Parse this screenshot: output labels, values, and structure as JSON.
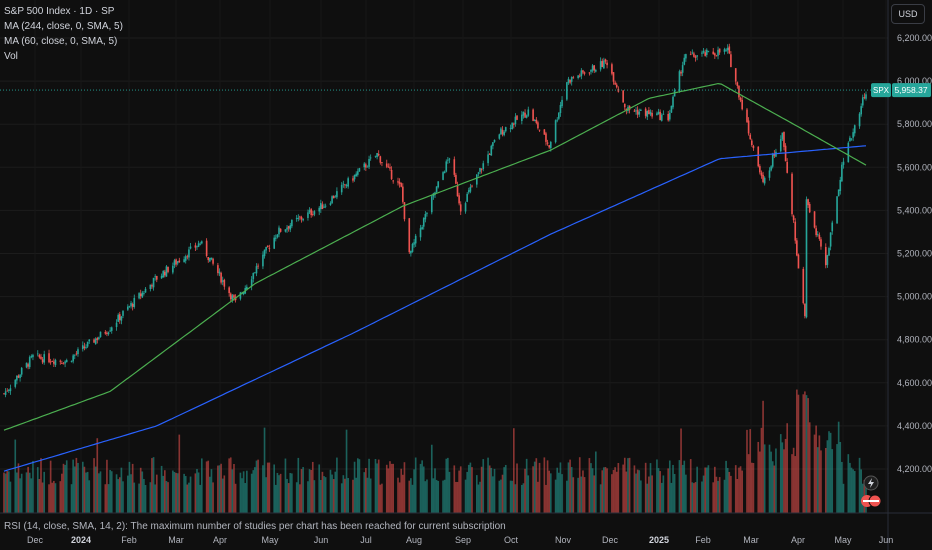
{
  "legend": {
    "title": "S&P 500 Index · 1D · SP",
    "ma_long": "MA (244, close, 0, SMA, 5)",
    "ma_short": "MA (60, close, 0, SMA, 5)",
    "volume": "Vol"
  },
  "currency": "USD",
  "rsi_note": "RSI (14, close, SMA, 14, 2): The maximum number of studies per chart has been reached for current subscription",
  "price_tag": {
    "symbol": "SPX",
    "value": "5,958.37",
    "price": 5958.37
  },
  "colors": {
    "up": "#26a69a",
    "down": "#ef5350",
    "ma_long": "#2962ff",
    "ma_short": "#4caf50",
    "tag": "#26a69a"
  },
  "icons": [
    "lightning-icon",
    "avatar-badge-icon"
  ],
  "chart_data": {
    "type": "candlestick",
    "symbol": "SPX",
    "ylim": [
      4100,
      6300
    ],
    "y_ticks": [
      "6,200.00",
      "6,000.00",
      "5,800.00",
      "5,600.00",
      "5,400.00",
      "5,200.00",
      "5,000.00",
      "4,800.00",
      "4,600.00",
      "4,400.00",
      "4,200.00"
    ],
    "y_tick_values": [
      6200,
      6000,
      5800,
      5600,
      5400,
      5200,
      5000,
      4800,
      4600,
      4400,
      4200
    ],
    "x_ticks": [
      "Dec",
      "2024",
      "Feb",
      "Mar",
      "Apr",
      "May",
      "Jun",
      "Jul",
      "Aug",
      "Sep",
      "Oct",
      "Nov",
      "Dec",
      "2025",
      "Feb",
      "Mar",
      "Apr",
      "May",
      "Jun"
    ],
    "x_tick_bold": [
      "2024",
      "2025"
    ],
    "price_path": [
      {
        "date": "2023-11-27",
        "close": 4550
      },
      {
        "date": "2023-12-15",
        "close": 4720
      },
      {
        "date": "2024-01-05",
        "close": 4700
      },
      {
        "date": "2024-01-31",
        "close": 4850
      },
      {
        "date": "2024-02-29",
        "close": 5080
      },
      {
        "date": "2024-03-28",
        "close": 5250
      },
      {
        "date": "2024-04-19",
        "close": 4970
      },
      {
        "date": "2024-05-15",
        "close": 5300
      },
      {
        "date": "2024-06-14",
        "close": 5430
      },
      {
        "date": "2024-07-16",
        "close": 5660
      },
      {
        "date": "2024-07-31",
        "close": 5500
      },
      {
        "date": "2024-08-05",
        "close": 5190
      },
      {
        "date": "2024-08-30",
        "close": 5650
      },
      {
        "date": "2024-09-06",
        "close": 5410
      },
      {
        "date": "2024-09-30",
        "close": 5760
      },
      {
        "date": "2024-10-18",
        "close": 5860
      },
      {
        "date": "2024-10-31",
        "close": 5700
      },
      {
        "date": "2024-11-11",
        "close": 6000
      },
      {
        "date": "2024-12-06",
        "close": 6090
      },
      {
        "date": "2024-12-18",
        "close": 5870
      },
      {
        "date": "2025-01-13",
        "close": 5830
      },
      {
        "date": "2025-01-23",
        "close": 6110
      },
      {
        "date": "2025-02-19",
        "close": 6140
      },
      {
        "date": "2025-03-13",
        "close": 5520
      },
      {
        "date": "2025-03-25",
        "close": 5770
      },
      {
        "date": "2025-04-08",
        "close": 4900
      },
      {
        "date": "2025-04-09",
        "close": 5450
      },
      {
        "date": "2025-04-21",
        "close": 5150
      },
      {
        "date": "2025-05-01",
        "close": 5600
      },
      {
        "date": "2025-05-13",
        "close": 5890
      },
      {
        "date": "2025-05-16",
        "close": 5958.37
      }
    ],
    "ma_244_path": [
      {
        "date": "2023-11-27",
        "close": 4190
      },
      {
        "date": "2024-03-01",
        "close": 4400
      },
      {
        "date": "2024-07-01",
        "close": 4830
      },
      {
        "date": "2024-11-01",
        "close": 5290
      },
      {
        "date": "2025-02-14",
        "close": 5640
      },
      {
        "date": "2025-05-16",
        "close": 5700
      }
    ],
    "ma_60_path": [
      {
        "date": "2023-11-27",
        "close": 4380
      },
      {
        "date": "2024-02-01",
        "close": 4560
      },
      {
        "date": "2024-05-01",
        "close": 5060
      },
      {
        "date": "2024-08-01",
        "close": 5420
      },
      {
        "date": "2024-11-01",
        "close": 5680
      },
      {
        "date": "2025-01-01",
        "close": 5920
      },
      {
        "date": "2025-02-14",
        "close": 5990
      },
      {
        "date": "2025-04-01",
        "close": 5800
      },
      {
        "date": "2025-05-16",
        "close": 5610
      }
    ],
    "volume_note": "relative volume bars, spike in early April 2025"
  }
}
